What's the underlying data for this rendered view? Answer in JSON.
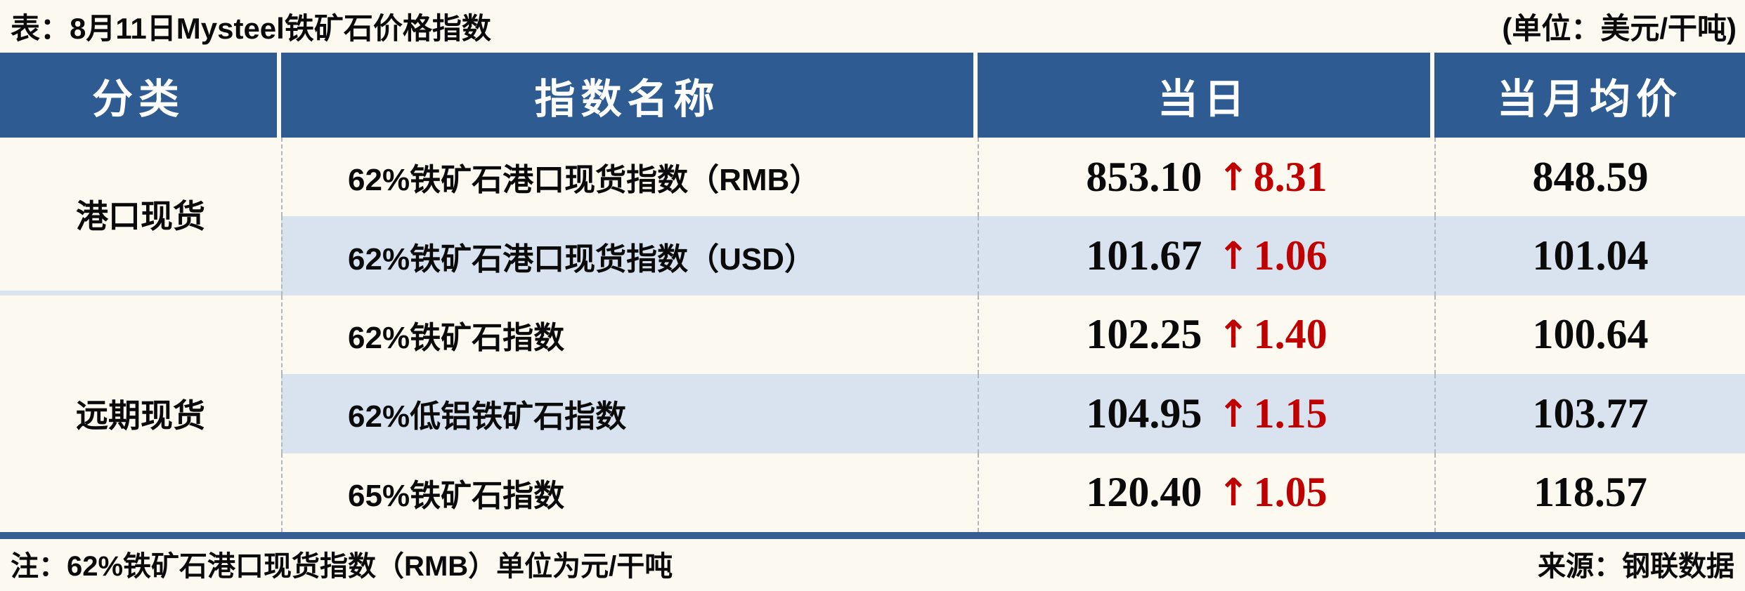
{
  "title": {
    "left": "表：8月11日Mysteel铁矿石价格指数",
    "right": "(单位：美元/干吨)"
  },
  "table": {
    "headers": [
      "分类",
      "指数名称",
      "当日",
      "当月均价"
    ],
    "groups": [
      {
        "category": "港口现货",
        "rows": [
          {
            "name": "62%铁矿石港口现货指数（RMB）",
            "daily": "853.10",
            "arrow": "↑",
            "change": "8.31",
            "monthly_avg": "848.59"
          },
          {
            "name": "62%铁矿石港口现货指数（USD）",
            "daily": "101.67",
            "arrow": "↑",
            "change": "1.06",
            "monthly_avg": "101.04"
          }
        ]
      },
      {
        "category": "远期现货",
        "rows": [
          {
            "name": "62%铁矿石指数",
            "daily": "102.25",
            "arrow": "↑",
            "change": "1.40",
            "monthly_avg": "100.64"
          },
          {
            "name": "62%低铝铁矿石指数",
            "daily": "104.95",
            "arrow": "↑",
            "change": "1.15",
            "monthly_avg": "103.77"
          },
          {
            "name": "65%铁矿石指数",
            "daily": "120.40",
            "arrow": "↑",
            "change": "1.05",
            "monthly_avg": "118.57"
          }
        ]
      }
    ]
  },
  "footer": {
    "note": "注：62%铁矿石港口现货指数（RMB）单位为元/干吨",
    "source": "来源：钢联数据"
  },
  "colors": {
    "header_bg": "#2e5c92",
    "alt_row_bg": "#d9e3f0",
    "up_change_red": "#c00000",
    "footer_bar": "#365e92",
    "page_bg": "#fcfaf0",
    "divider_dash": "#b3b7bc"
  }
}
